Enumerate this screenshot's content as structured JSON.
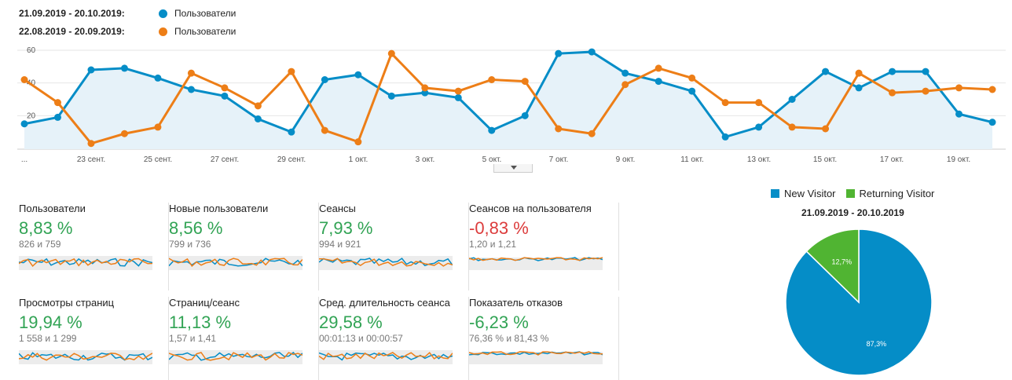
{
  "legend": [
    {
      "date": "21.09.2019 - 20.10.2019:",
      "name": "Пользователи",
      "color": "#058dc7"
    },
    {
      "date": "22.08.2019 - 20.09.2019:",
      "name": "Пользователи",
      "color": "#ed7e17"
    }
  ],
  "chart_data": [
    {
      "type": "line",
      "yticks": [
        "60",
        "40",
        "20"
      ],
      "ylim": [
        0,
        60
      ],
      "xticks": [
        "...",
        "23 сент.",
        "25 сент.",
        "27 сент.",
        "29 сент.",
        "1 окт.",
        "3 окт.",
        "5 окт.",
        "7 окт.",
        "9 окт.",
        "11 окт.",
        "13 окт.",
        "15 окт.",
        "17 окт.",
        "19 окт."
      ],
      "series": [
        {
          "name": "Пользователи",
          "color": "#058dc7",
          "values": [
            15,
            19,
            48,
            49,
            43,
            36,
            32,
            18,
            10,
            42,
            45,
            32,
            34,
            31,
            11,
            20,
            58,
            59,
            46,
            41,
            35,
            7,
            13,
            30,
            47,
            37,
            47,
            47,
            21,
            16
          ]
        },
        {
          "name": "Пользователи",
          "color": "#ed7e17",
          "values": [
            42,
            28,
            3,
            9,
            13,
            46,
            37,
            26,
            47,
            11,
            4,
            58,
            37,
            35,
            42,
            41,
            12,
            9,
            39,
            49,
            43,
            28,
            28,
            13,
            12,
            46,
            34,
            35,
            37,
            36
          ]
        }
      ]
    },
    {
      "type": "pie",
      "title": "21.09.2019 - 20.10.2019",
      "slices": [
        {
          "label": "New Visitor",
          "value": 87.3,
          "text": "87,3%",
          "color": "#058dc7"
        },
        {
          "label": "Returning Visitor",
          "value": 12.7,
          "text": "12,7%",
          "color": "#50b432"
        }
      ]
    }
  ],
  "metrics": [
    {
      "title": "Пользователи",
      "value": "8,83 %",
      "sub": "826 и 759",
      "color": "#31a354"
    },
    {
      "title": "Новые пользователи",
      "value": "8,56 %",
      "sub": "799 и 736",
      "color": "#31a354"
    },
    {
      "title": "Сеансы",
      "value": "7,93 %",
      "sub": "994 и 921",
      "color": "#31a354"
    },
    {
      "title": "Сеансов на пользователя",
      "value": "-0,83 %",
      "sub": "1,20 и 1,21",
      "color": "#dc3c3c"
    },
    {
      "title": "Просмотры страниц",
      "value": "19,94 %",
      "sub": "1 558 и 1 299",
      "color": "#31a354"
    },
    {
      "title": "Страниц/сеанс",
      "value": "11,13 %",
      "sub": "1,57 и 1,41",
      "color": "#31a354"
    },
    {
      "title": "Сред. длительность сеанса",
      "value": "29,58 %",
      "sub": "00:01:13 и 00:00:57",
      "color": "#31a354"
    },
    {
      "title": "Показатель отказов",
      "value": "-6,23 %",
      "sub": "76,36 % и 81,43 %",
      "color": "#31a354"
    }
  ]
}
